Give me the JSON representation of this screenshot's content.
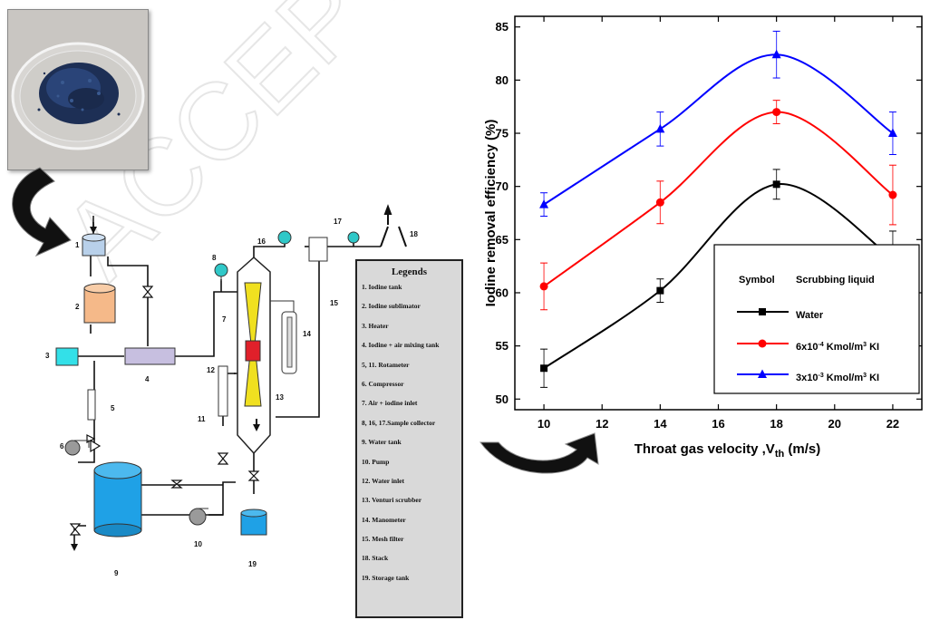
{
  "watermark": "ACCEPTED",
  "diagram": {
    "legend_title": "Legends",
    "legend_items": [
      "1. Iodine tank",
      "2. Iodine sublimator",
      "3. Heater",
      "4. Iodine + air mixing tank",
      "5, 11. Rotameter",
      "6. Compressor",
      "7. Air + iodine inlet",
      "8, 16, 17.Sample collector",
      "9. Water tank",
      "10. Pump",
      "12. Water inlet",
      "13. Venturi scrubber",
      "14. Manometer",
      "15. Mesh filter",
      "18. Stack",
      "19. Storage tank"
    ],
    "component_numbers": [
      "1",
      "2",
      "3",
      "4",
      "5",
      "6",
      "7",
      "8",
      "9",
      "10",
      "11",
      "12",
      "13",
      "14",
      "15",
      "16",
      "17",
      "18",
      "19"
    ],
    "colors": {
      "iodine_tank": "#b8d0ea",
      "sublimator": "#f5b989",
      "heater": "#33e0e8",
      "mixing_tank": "#c7bfe0",
      "water_tank": "#1fa1e6",
      "venturi_throat": "#f0e020",
      "injection_zone": "#e0202a",
      "sample_collector": "#30c8c8",
      "pump": "#9a9a9a"
    }
  },
  "chart_data": {
    "type": "line",
    "title": "",
    "xlabel": "Throat gas velocity ,V_th (m/s)",
    "xlabel_main": "Throat gas velocity ,V",
    "xlabel_sub": "th",
    "xlabel_tail": " (m/s)",
    "ylabel": "Iodine removal efficiency (%)",
    "xlim": [
      9,
      23
    ],
    "ylim": [
      49,
      86
    ],
    "xticks": [
      10,
      12,
      14,
      16,
      18,
      20,
      22
    ],
    "yticks": [
      50,
      55,
      60,
      65,
      70,
      75,
      80,
      85
    ],
    "x": [
      10,
      14,
      18,
      22
    ],
    "series": [
      {
        "name": "Water",
        "values": [
          52.9,
          60.2,
          70.2,
          63.2
        ],
        "errors": [
          1.8,
          1.1,
          1.4,
          2.6
        ],
        "color": "#000000",
        "marker": "square"
      },
      {
        "name": "6x10-4 Kmol/m3 KI",
        "values": [
          60.6,
          68.5,
          77.0,
          69.2
        ],
        "errors": [
          2.2,
          2.0,
          1.1,
          2.8
        ],
        "color": "#ff0000",
        "marker": "circle"
      },
      {
        "name": "3x10-3 Kmol/m3 KI",
        "values": [
          68.3,
          75.4,
          82.4,
          75.0
        ],
        "errors": [
          1.1,
          1.6,
          2.2,
          2.0
        ],
        "color": "#0000ff",
        "marker": "triangle"
      }
    ],
    "legend": {
      "placement": "lower-right",
      "header_symbol": "Symbol",
      "header_liquid": "Scrubbing liquid",
      "rows": [
        {
          "label": "Water"
        },
        {
          "label_main": "6x10",
          "label_sup": "-4",
          "label_mid": " Kmol/m",
          "label_sup2": "3",
          "label_tail": " KI"
        },
        {
          "label_main": "3x10",
          "label_sup": "-3",
          "label_mid": " Kmol/m",
          "label_sup2": "3",
          "label_tail": " KI"
        }
      ]
    }
  }
}
